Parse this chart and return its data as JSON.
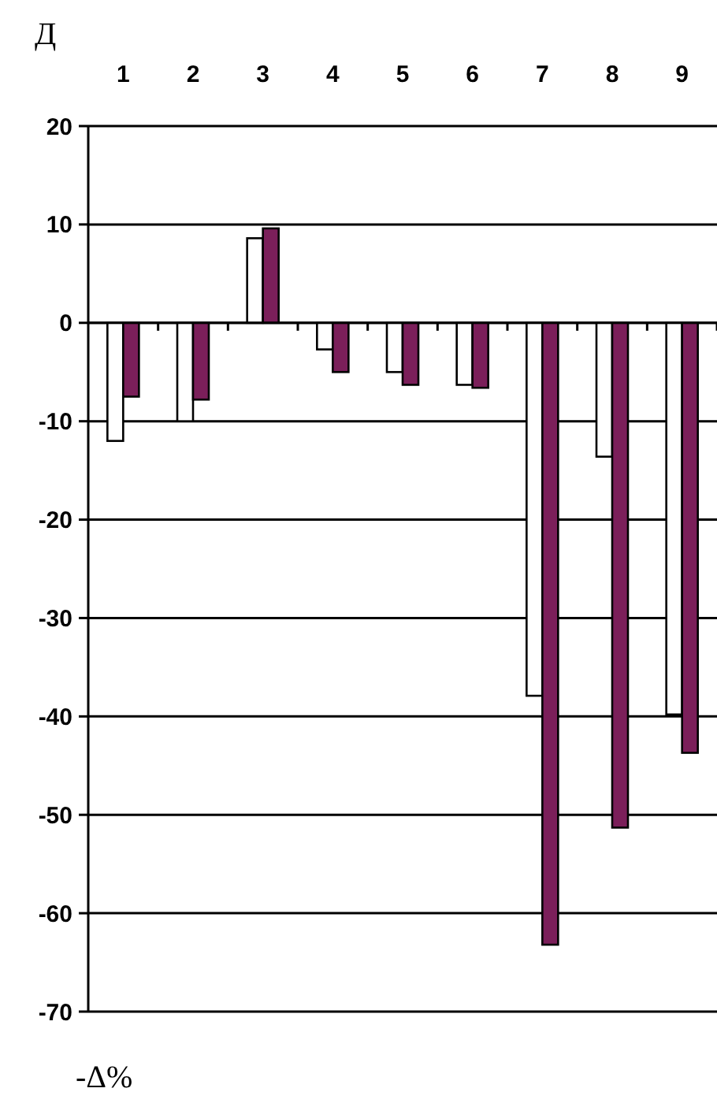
{
  "chart_data": {
    "type": "bar",
    "title": "Д",
    "annotations": [
      "-Δ%"
    ],
    "categories": [
      "1",
      "2",
      "3",
      "4",
      "5",
      "6",
      "7",
      "8",
      "9"
    ],
    "series": [
      {
        "color": "#ffffff",
        "values": [
          -12.0,
          -10.0,
          8.6,
          -2.7,
          -5.0,
          -6.3,
          -37.9,
          -13.6,
          -39.8
        ]
      },
      {
        "color": "#7b1f5a",
        "values": [
          -7.5,
          -7.8,
          9.6,
          -5.0,
          -6.3,
          -6.6,
          -63.2,
          -51.3,
          -43.7
        ]
      }
    ],
    "ylim": [
      -70,
      20
    ],
    "yticks": [
      -70,
      -60,
      -50,
      -40,
      -30,
      -20,
      -10,
      0,
      10,
      20
    ],
    "grid": "y"
  }
}
